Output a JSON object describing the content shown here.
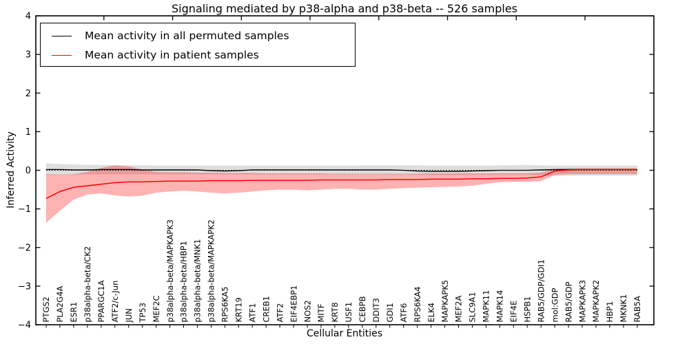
{
  "figure": {
    "title": "Signaling mediated by p38-alpha and p38-beta -- 526 samples",
    "xlabel": "Cellular Entities",
    "ylabel": "Inferred Activity",
    "sample_count": "526"
  },
  "legend": {
    "items": [
      {
        "label": "Mean activity in all permuted samples",
        "color": "#000000"
      },
      {
        "label": "Mean activity in patient samples",
        "color": "#ff0000"
      }
    ]
  },
  "chart_data": {
    "type": "line",
    "title": "Signaling mediated by p38-alpha and p38-beta -- 526 samples",
    "xlabel": "Cellular Entities",
    "ylabel": "Inferred Activity",
    "ylim": [
      -4,
      4
    ],
    "yticks": [
      -4,
      -3,
      -2,
      -1,
      0,
      1,
      2,
      3,
      4
    ],
    "xticks_top_values": [
      5,
      10,
      15,
      20,
      25,
      30,
      35,
      40
    ],
    "grid": false,
    "legend_position": "upper left",
    "zero_line": {
      "value": 0,
      "style": "dotted",
      "color": "#000000"
    },
    "categories": [
      "PTGS2",
      "PLA2G4A",
      "ESR1",
      "p38alpha-beta/CK2",
      "PPARGC1A",
      "ATF2/c-Jun",
      "JUN",
      "TP53",
      "MEF2C",
      "p38alpha-beta/MAPKAPK3",
      "p38alpha-beta/HBP1",
      "p38alpha-beta/MNK1",
      "p38alpha-beta/MAPKAPK2",
      "RPS6KA5",
      "KRT19",
      "ATF1",
      "CREB1",
      "ATF2",
      "EIF4EBP1",
      "NOS2",
      "MITF",
      "KRT8",
      "USF1",
      "CEBPB",
      "DDIT3",
      "GDI1",
      "ATF6",
      "RPS6KA4",
      "ELK4",
      "MAPKAPK5",
      "MEF2A",
      "SLC9A1",
      "MAPK11",
      "MAPK14",
      "EIF4E",
      "HSPB1",
      "RAB5/GDP/GDI1",
      "mol:GDP",
      "RAB5/GDP",
      "MAPKAPK3",
      "MAPKAPK2",
      "HBP1",
      "MKNK1",
      "RAB5A"
    ],
    "series": [
      {
        "name": "Mean activity in all permuted samples",
        "color": "#000000",
        "line_width": 1.3,
        "band_color": "rgba(0,0,0,0.13)",
        "values": [
          0.02,
          0.02,
          0.01,
          0.01,
          0.02,
          0.02,
          0.02,
          0.01,
          0.01,
          0.01,
          0.01,
          0.01,
          -0.01,
          -0.02,
          -0.01,
          0.01,
          0.01,
          0.01,
          0.01,
          0.01,
          0.01,
          0.01,
          0.01,
          0.01,
          0.01,
          0.01,
          0.0,
          -0.02,
          -0.03,
          -0.03,
          -0.03,
          -0.02,
          -0.01,
          0.0,
          0.0,
          0.0,
          0.01,
          0.02,
          0.02,
          0.02,
          0.02,
          0.02,
          0.02,
          0.02
        ],
        "band_upper": [
          0.18,
          0.16,
          0.15,
          0.14,
          0.14,
          0.13,
          0.13,
          0.13,
          0.12,
          0.12,
          0.12,
          0.12,
          0.12,
          0.12,
          0.12,
          0.12,
          0.12,
          0.12,
          0.12,
          0.12,
          0.12,
          0.12,
          0.12,
          0.13,
          0.13,
          0.13,
          0.13,
          0.13,
          0.12,
          0.12,
          0.12,
          0.12,
          0.12,
          0.13,
          0.13,
          0.14,
          0.13,
          0.12,
          0.12,
          0.12,
          0.12,
          0.12,
          0.12,
          0.12
        ],
        "band_lower": [
          -0.12,
          -0.12,
          -0.11,
          -0.11,
          -0.11,
          -0.11,
          -0.11,
          -0.11,
          -0.11,
          -0.11,
          -0.11,
          -0.11,
          -0.11,
          -0.11,
          -0.11,
          -0.11,
          -0.11,
          -0.11,
          -0.11,
          -0.11,
          -0.11,
          -0.11,
          -0.11,
          -0.11,
          -0.11,
          -0.11,
          -0.11,
          -0.12,
          -0.12,
          -0.12,
          -0.12,
          -0.12,
          -0.12,
          -0.12,
          -0.12,
          -0.12,
          -0.13,
          -0.14,
          -0.14,
          -0.14,
          -0.14,
          -0.14,
          -0.14,
          -0.14
        ]
      },
      {
        "name": "Mean activity in patient samples",
        "color": "#ff0000",
        "line_width": 1.5,
        "band_color": "rgba(255,0,0,0.3)",
        "values": [
          -0.73,
          -0.55,
          -0.44,
          -0.4,
          -0.36,
          -0.32,
          -0.3,
          -0.3,
          -0.29,
          -0.28,
          -0.28,
          -0.28,
          -0.27,
          -0.27,
          -0.27,
          -0.26,
          -0.26,
          -0.26,
          -0.26,
          -0.26,
          -0.25,
          -0.25,
          -0.25,
          -0.25,
          -0.25,
          -0.24,
          -0.24,
          -0.24,
          -0.23,
          -0.23,
          -0.23,
          -0.22,
          -0.22,
          -0.21,
          -0.21,
          -0.2,
          -0.17,
          -0.02,
          0.01,
          0.02,
          0.02,
          0.02,
          0.02,
          0.02
        ],
        "band_upper": [
          -0.1,
          -0.11,
          -0.1,
          -0.04,
          0.06,
          0.13,
          0.1,
          0.02,
          -0.04,
          -0.05,
          -0.05,
          -0.06,
          -0.06,
          -0.07,
          -0.07,
          -0.07,
          -0.08,
          -0.08,
          -0.08,
          -0.08,
          -0.08,
          -0.09,
          -0.09,
          -0.09,
          -0.09,
          -0.09,
          -0.09,
          -0.09,
          -0.08,
          -0.08,
          -0.08,
          -0.08,
          -0.08,
          -0.08,
          -0.08,
          -0.08,
          -0.06,
          0.03,
          0.05,
          0.05,
          0.05,
          0.05,
          0.05,
          0.05
        ],
        "band_lower": [
          -1.36,
          -1.05,
          -0.76,
          -0.63,
          -0.6,
          -0.65,
          -0.68,
          -0.66,
          -0.58,
          -0.55,
          -0.53,
          -0.55,
          -0.58,
          -0.6,
          -0.58,
          -0.55,
          -0.52,
          -0.5,
          -0.5,
          -0.52,
          -0.5,
          -0.48,
          -0.48,
          -0.5,
          -0.5,
          -0.48,
          -0.46,
          -0.45,
          -0.44,
          -0.43,
          -0.42,
          -0.4,
          -0.35,
          -0.31,
          -0.3,
          -0.3,
          -0.28,
          -0.12,
          -0.1,
          -0.1,
          -0.1,
          -0.1,
          -0.1,
          -0.1
        ]
      }
    ]
  }
}
